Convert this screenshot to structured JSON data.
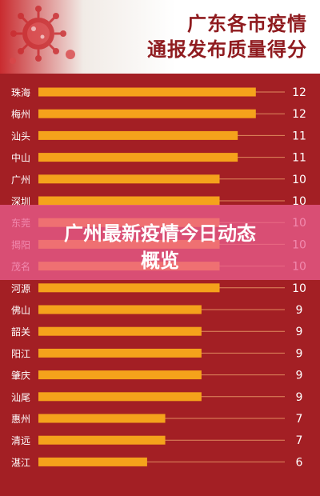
{
  "header": {
    "title_line1": "广东各市疫情",
    "title_line2": "通报发布质量得分"
  },
  "banner": {
    "line1": "广州最新疫情今日动态",
    "line2": "概览"
  },
  "icons": {
    "virus": "virus-icon"
  },
  "colors": {
    "background": "#a31f24",
    "bar": "#f5a21b",
    "line": "#e08b5e",
    "banner": "#ec5f91"
  },
  "chart_data": {
    "type": "bar",
    "orientation": "horizontal",
    "categories": [
      "珠海",
      "梅州",
      "汕头",
      "中山",
      "广州",
      "深圳",
      "东莞",
      "揭阳",
      "茂名",
      "河源",
      "佛山",
      "韶关",
      "阳江",
      "肇庆",
      "汕尾",
      "惠州",
      "清远",
      "湛江"
    ],
    "values": [
      12,
      12,
      11,
      11,
      10,
      10,
      10,
      10,
      10,
      10,
      9,
      9,
      9,
      9,
      9,
      7,
      7,
      6
    ],
    "value_labels": [
      "12",
      "12",
      "11",
      "11",
      "10",
      "10",
      "10",
      "10",
      "10",
      "10",
      "9",
      "9",
      "9",
      "9",
      "9",
      "7",
      "7",
      "6"
    ],
    "xlim": [
      0,
      15
    ],
    "grid": false,
    "legend": "none"
  }
}
